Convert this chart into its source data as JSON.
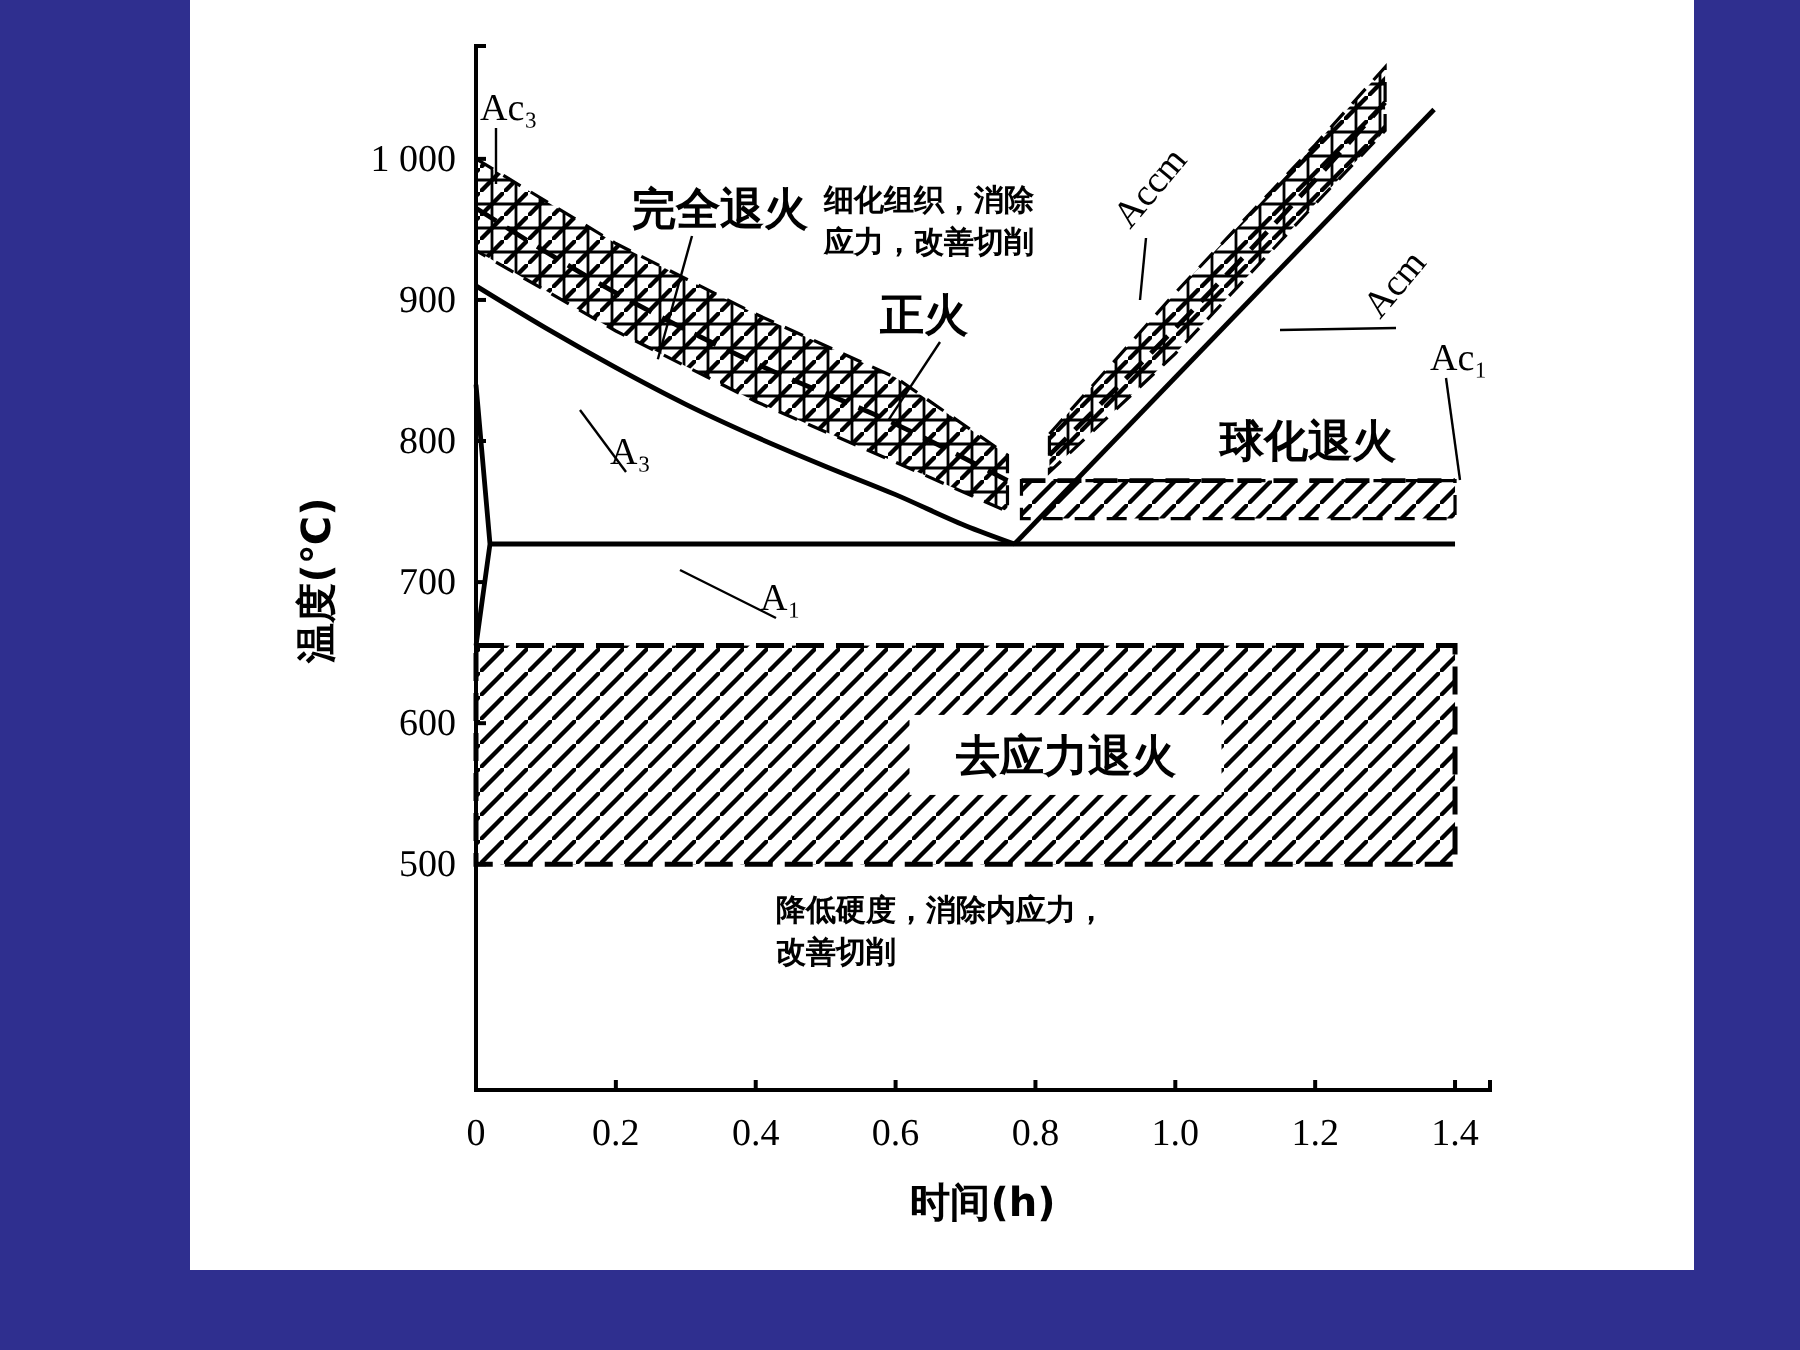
{
  "chart_data": {
    "type": "line",
    "xlabel": "时间(h)",
    "ylabel": "温度(℃)",
    "xlim": [
      0,
      1.45
    ],
    "ylim": [
      340,
      1080
    ],
    "xticks": [
      0,
      0.2,
      0.4,
      0.6,
      0.8,
      {
        "value": 1,
        "label": "1.0"
      },
      1.2,
      1.4
    ],
    "yticks": [
      500,
      600,
      700,
      800,
      900,
      {
        "value": 1000,
        "label": "1 000"
      }
    ],
    "grid": false,
    "marker": "none",
    "series": [
      {
        "name": "A₃",
        "color": "#000000",
        "line_style": "solid",
        "x": [
          0,
          0.1,
          0.2,
          0.3,
          0.4,
          0.5,
          0.6,
          0.7,
          0.77
        ],
        "values": [
          910,
          880,
          852,
          826,
          803,
          782,
          762,
          740,
          727
        ]
      },
      {
        "name": "A₁",
        "color": "#000000",
        "line_style": "solid",
        "x": [
          0.02,
          1.4
        ],
        "values": [
          727,
          727
        ]
      },
      {
        "color": "#000000",
        "line_style": "solid",
        "x": [
          0,
          0.02,
          0
        ],
        "values": [
          840,
          727,
          655
        ]
      },
      {
        "name": "Acm",
        "color": "#000000",
        "line_style": "solid",
        "x": [
          0.77,
          1.37
        ],
        "values": [
          727,
          1035
        ]
      },
      {
        "name": "Ac₃",
        "color": "#000000",
        "line_style": "dashed",
        "x": [
          0,
          0.2,
          0.4,
          0.6,
          0.76
        ],
        "values": [
          965,
          905,
          855,
          812,
          772
        ],
        "lower": [
          935,
          878,
          828,
          785,
          750
        ],
        "upper": [
          1000,
          940,
          890,
          845,
          790
        ]
      },
      {
        "name": "Accm",
        "color": "#000000",
        "line_style": "dashed",
        "x": [
          0.82,
          1.0,
          1.2,
          1.3
        ],
        "values": [
          790,
          880,
          985,
          1040
        ],
        "lower": [
          778,
          862,
          968,
          1020
        ],
        "upper": [
          805,
          905,
          1010,
          1065
        ]
      },
      {
        "name": "Ac₁",
        "color": "#000000",
        "line_style": "dashed",
        "x": [
          0.78,
          1.4
        ],
        "values": [
          772,
          772
        ],
        "lower": [
          745,
          745
        ],
        "upper": [
          772,
          772
        ]
      }
    ],
    "bands": [
      {
        "axis": "y",
        "from": 500,
        "to": 655,
        "label": "去应力退火",
        "color": "#000000"
      }
    ],
    "annotations": [
      {
        "text": "完全退火",
        "x": 0.26,
        "y": 858
      },
      {
        "text": "正火",
        "x": 0.59,
        "y": 815
      },
      "细化组织，消除应力，改善切削",
      "球化退火",
      "降低硬度，消除内应力，改善切削"
    ]
  }
}
